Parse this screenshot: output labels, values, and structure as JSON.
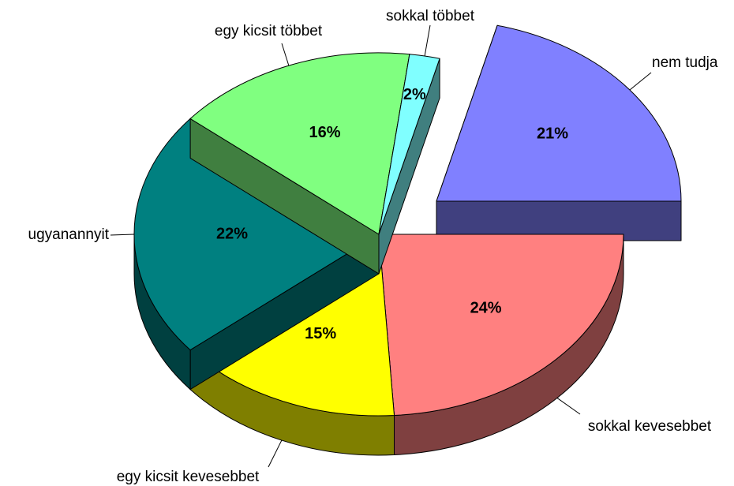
{
  "chart_data": {
    "type": "pie",
    "categories": [
      "sokkal kevesebbet",
      "egy kicsit kevesebbet",
      "ugyanannyit",
      "egy kicsit többet",
      "sokkal többet",
      "nem tudja"
    ],
    "values": [
      24,
      15,
      22,
      16,
      2,
      21
    ],
    "value_labels": [
      "24%",
      "15%",
      "22%",
      "16%",
      "2%",
      "21%"
    ],
    "colors": [
      "#ff8080",
      "#ffff00",
      "#008080",
      "#80ff80",
      "#80ffff",
      "#8080ff"
    ]
  }
}
